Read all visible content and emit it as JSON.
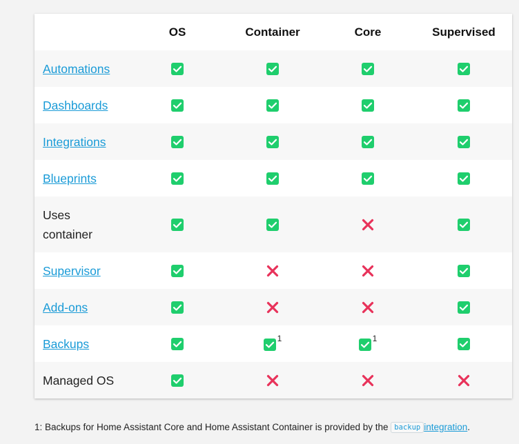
{
  "table": {
    "columns": [
      "",
      "OS",
      "Container",
      "Core",
      "Supervised"
    ],
    "rows": [
      {
        "feature": "Automations",
        "link": true,
        "tall": false,
        "cells": [
          {
            "v": "yes"
          },
          {
            "v": "yes"
          },
          {
            "v": "yes"
          },
          {
            "v": "yes"
          }
        ]
      },
      {
        "feature": "Dashboards",
        "link": true,
        "tall": false,
        "cells": [
          {
            "v": "yes"
          },
          {
            "v": "yes"
          },
          {
            "v": "yes"
          },
          {
            "v": "yes"
          }
        ]
      },
      {
        "feature": "Integrations",
        "link": true,
        "tall": false,
        "cells": [
          {
            "v": "yes"
          },
          {
            "v": "yes"
          },
          {
            "v": "yes"
          },
          {
            "v": "yes"
          }
        ]
      },
      {
        "feature": "Blueprints",
        "link": true,
        "tall": false,
        "cells": [
          {
            "v": "yes"
          },
          {
            "v": "yes"
          },
          {
            "v": "yes"
          },
          {
            "v": "yes"
          }
        ]
      },
      {
        "feature": "Uses container",
        "feature_lines": [
          "Uses",
          "container"
        ],
        "link": false,
        "tall": true,
        "cells": [
          {
            "v": "yes"
          },
          {
            "v": "yes"
          },
          {
            "v": "no"
          },
          {
            "v": "yes"
          }
        ]
      },
      {
        "feature": "Supervisor",
        "link": true,
        "tall": false,
        "cells": [
          {
            "v": "yes"
          },
          {
            "v": "no"
          },
          {
            "v": "no"
          },
          {
            "v": "yes"
          }
        ]
      },
      {
        "feature": "Add-ons",
        "link": true,
        "tall": false,
        "cells": [
          {
            "v": "yes"
          },
          {
            "v": "no"
          },
          {
            "v": "no"
          },
          {
            "v": "yes"
          }
        ]
      },
      {
        "feature": "Backups",
        "link": true,
        "tall": false,
        "cells": [
          {
            "v": "yes"
          },
          {
            "v": "yes",
            "note": "1"
          },
          {
            "v": "yes",
            "note": "1"
          },
          {
            "v": "yes"
          }
        ]
      },
      {
        "feature": "Managed OS",
        "link": false,
        "tall": false,
        "cells": [
          {
            "v": "yes"
          },
          {
            "v": "no"
          },
          {
            "v": "no"
          },
          {
            "v": "no"
          }
        ]
      }
    ]
  },
  "footnote": {
    "prefix": "1: Backups for Home Assistant Core and Home Assistant Container is provided by the",
    "code": "backup",
    "link": "integration",
    "suffix": "."
  },
  "icons": {
    "yes": {
      "name": "check-icon",
      "color": "#1fce6d"
    },
    "no": {
      "name": "cross-icon",
      "color": "#e8325a"
    }
  }
}
